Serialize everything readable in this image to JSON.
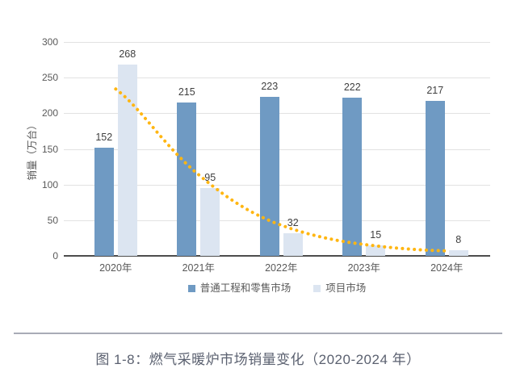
{
  "chart_data": {
    "type": "bar",
    "categories": [
      "2020年",
      "2021年",
      "2022年",
      "2023年",
      "2024年"
    ],
    "series": [
      {
        "name": "普通工程和零售市场",
        "color": "#6F9AC3",
        "values": [
          152,
          215,
          223,
          222,
          217
        ]
      },
      {
        "name": "项目市场",
        "color": "#DCE5F1",
        "values": [
          268,
          95,
          32,
          15,
          8
        ]
      }
    ],
    "trendline": {
      "series": "项目市场",
      "shape": "exponential-decay",
      "color": "#FFB612",
      "style": "dotted",
      "values": [
        234,
        114,
        43,
        16,
        7
      ]
    },
    "ylabel": "销量（万台）",
    "yticks": [
      0,
      50,
      100,
      150,
      200,
      250,
      300
    ],
    "ylim": [
      0,
      300
    ],
    "grid": true,
    "legend_position": "bottom",
    "data_labels": true
  },
  "caption": {
    "text": "图 1-8：燃气采暖炉市场销量变化（2020-2024 年）"
  },
  "colors": {
    "axis_line": "#4d4d4d",
    "gridline": "#e2e2e2",
    "tick_label": "#595959",
    "data_label": "#3f3f3f",
    "caption_text": "#5b6170",
    "divider": "#a8abb6",
    "background": "#ffffff"
  }
}
